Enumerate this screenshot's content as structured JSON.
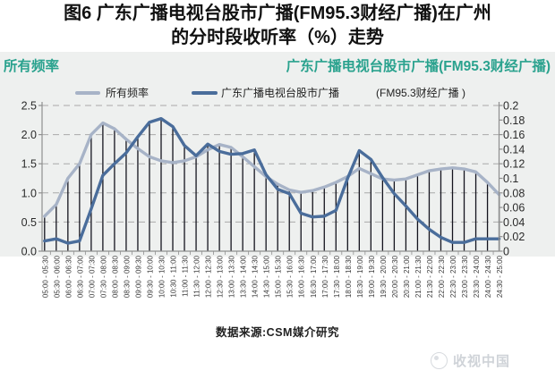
{
  "title": {
    "line1": "图6 广东广播电视台股市广播(FM95.3财经广播)在广州",
    "line2": "的分时段收听率（%）走势"
  },
  "axis_titles": {
    "left": "所有频率",
    "right": "广东广播电视台股市广播(FM95.3财经广播)"
  },
  "legend": {
    "series1_label": "所有频率",
    "series2_label": "广东广播电视台股市广播",
    "series2_label_cont": "(FM95.3财经广播 )"
  },
  "source_note": "数据来源:CSM媒介研究",
  "watermark": "收视中国",
  "colors": {
    "teal_heading": "#2aa28e",
    "series_allfreq": "#a7b3c7",
    "series_stock": "#4a6d9b",
    "drop_line": "#14141e",
    "grid": "#a9a9a9",
    "axis": "#8f8f8f",
    "plot_bg": "#eef0ef",
    "tick_text": "#2b2b2b",
    "xlabel_text": "#3a3a3a"
  },
  "chart_data": {
    "type": "line",
    "title": "广东广播电视台股市广播(FM95.3财经广播)在广州的分时段收听率（%）走势",
    "grid": "dashed-horizontal",
    "drop_lines": true,
    "legend_position": "top",
    "categories": [
      "05:00 - 05:30",
      "05:30 - 06:00",
      "06:00 - 06:30",
      "06:30 - 07:00",
      "07:00 - 07:30",
      "07:30 - 08:00",
      "08:00 - 08:30",
      "08:30 - 09:00",
      "09:00 - 09:30",
      "09:30 - 10:00",
      "10:00 - 10:30",
      "10:30 - 11:00",
      "11:00 - 11:30",
      "11:30 - 12:00",
      "12:00 - 12:30",
      "12:30 - 13:00",
      "13:00 - 13:30",
      "13:30 - 14:00",
      "14:00 - 14:30",
      "14:30 - 15:00",
      "15:00 - 15:30",
      "15:30 - 16:00",
      "16:00 - 16:30",
      "16:30 - 17:00",
      "17:00 - 17:30",
      "17:30 - 18:00",
      "18:00 - 18:30",
      "18:30 - 19:00",
      "19:00 - 19:30",
      "19:30 - 20:00",
      "20:00 - 20:30",
      "20:30 - 21:00",
      "21:00 - 21:30",
      "21:30 - 22:00",
      "22:00 - 22:30",
      "22:30 - 23:00",
      "23:00 - 23:30",
      "23:30 - 24:00",
      "24:00 - 24:30",
      "24:30 - 25:00"
    ],
    "series": [
      {
        "name": "所有频率",
        "axis": "left",
        "values": [
          0.6,
          0.8,
          1.25,
          1.5,
          2.0,
          2.2,
          2.1,
          1.92,
          1.76,
          1.62,
          1.55,
          1.52,
          1.55,
          1.62,
          1.74,
          1.83,
          1.78,
          1.62,
          1.45,
          1.28,
          1.15,
          1.05,
          1.01,
          1.04,
          1.1,
          1.18,
          1.28,
          1.42,
          1.33,
          1.24,
          1.22,
          1.24,
          1.31,
          1.38,
          1.41,
          1.43,
          1.41,
          1.36,
          1.18,
          0.97
        ]
      },
      {
        "name": "广东广播电视台股市广播(FM95.3财经广播)",
        "axis": "right",
        "values": [
          0.014,
          0.017,
          0.011,
          0.014,
          0.058,
          0.104,
          0.12,
          0.135,
          0.157,
          0.177,
          0.182,
          0.171,
          0.145,
          0.131,
          0.147,
          0.137,
          0.133,
          0.134,
          0.139,
          0.105,
          0.085,
          0.079,
          0.052,
          0.047,
          0.048,
          0.056,
          0.1,
          0.138,
          0.126,
          0.101,
          0.079,
          0.062,
          0.044,
          0.03,
          0.019,
          0.012,
          0.012,
          0.017,
          0.017,
          0.017
        ]
      }
    ],
    "left_axis": {
      "min": 0,
      "max": 2.5,
      "tick_labels": [
        "0.0",
        "0.5",
        "1.0",
        "1.5",
        "2.0",
        "2.5"
      ]
    },
    "right_axis": {
      "min": 0,
      "max": 0.2,
      "tick_labels": [
        "0",
        "0.02",
        "0.04",
        "0.06",
        "0.08",
        "0.1",
        "0.12",
        "0.14",
        "0.16",
        "0.18",
        "0.2"
      ]
    }
  }
}
